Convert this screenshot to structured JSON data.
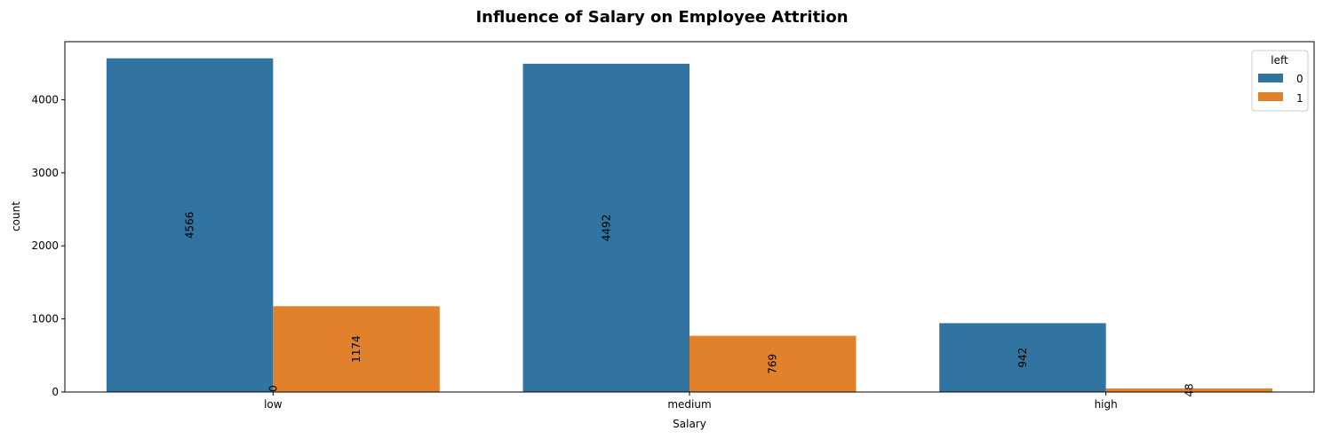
{
  "chart_data": {
    "type": "bar",
    "title": "Influence of Salary on Employee Attrition",
    "xlabel": "Salary",
    "ylabel": "count",
    "categories": [
      "low",
      "medium",
      "high"
    ],
    "series": [
      {
        "name": "0",
        "values": [
          4566,
          4492,
          942
        ],
        "color": "#3274a1"
      },
      {
        "name": "1",
        "values": [
          1174,
          769,
          48
        ],
        "color": "#e1812c"
      }
    ],
    "extra_labels": [
      {
        "text": "0",
        "category": "low"
      }
    ],
    "ylim": [
      0,
      4794
    ],
    "yticks": [
      0,
      1000,
      2000,
      3000,
      4000
    ],
    "grid": false,
    "legend": {
      "title": "left",
      "placement": "top-right"
    }
  }
}
